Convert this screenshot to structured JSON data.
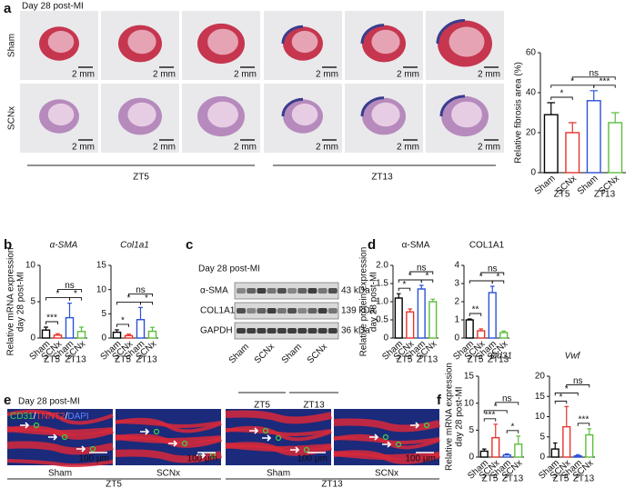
{
  "figure": {
    "panel_labels": [
      "a",
      "b",
      "c",
      "d",
      "e",
      "f"
    ]
  },
  "histology": {
    "timepoint": "Day 28 post-MI",
    "rows": [
      "Sham",
      "SCNx"
    ],
    "scale_bar": "2 mm",
    "groups": [
      "ZT5",
      "ZT13"
    ]
  },
  "western_blot": {
    "timepoint": "Day 28 post-MI",
    "proteins": [
      "α-SMA",
      "COL1A1",
      "GAPDH"
    ],
    "sizes": [
      "43 kDa",
      "139 kDa",
      "36 kDa"
    ],
    "lanes": [
      "Sham",
      "SCNx",
      "Sham",
      "SCNx"
    ],
    "groups": [
      "ZT5",
      "ZT13"
    ]
  },
  "immunofluorescence": {
    "timepoint": "Day 28 post-MI",
    "stains": [
      {
        "text": "CD31",
        "color": "#3fd24a"
      },
      {
        "text": "TNNT2",
        "color": "#ff3a3a"
      },
      {
        "text": "DAPI",
        "color": "#5a86ff"
      }
    ],
    "separator": "/",
    "scale_bar": "100 μm",
    "conditions": [
      "Sham",
      "SCNx",
      "Sham",
      "SCNx"
    ],
    "groups": [
      "ZT5",
      "ZT13"
    ]
  },
  "chart_data": [
    {
      "type": "bar",
      "y_label": "Relative fibrosis area (%)",
      "categories": [
        "Sham",
        "SCNx",
        "Sham",
        "SCNx"
      ],
      "groups": [
        "ZT5",
        "ZT13"
      ],
      "values": [
        29,
        20,
        36,
        25
      ],
      "errors": [
        6,
        5,
        5,
        5
      ],
      "colors": [
        "#000000",
        "#e8312a",
        "#2a52d9",
        "#5bbf3a"
      ],
      "ylim": [
        0,
        60
      ],
      "yticks": [
        0,
        20,
        40,
        60
      ],
      "significance": [
        "*",
        "*",
        "***",
        "ns"
      ]
    },
    {
      "type": "bar",
      "title": "α-SMA",
      "title_italic": true,
      "y_label": [
        "Relative mRNA expression",
        "day 28 post-MI"
      ],
      "categories": [
        "Sham",
        "SCNx",
        "Sham",
        "SCNx"
      ],
      "groups": [
        "ZT5",
        "ZT13"
      ],
      "values": [
        1.1,
        0.4,
        2.8,
        0.9
      ],
      "errors": [
        0.4,
        0.2,
        2,
        0.6
      ],
      "colors": [
        "#000000",
        "#e8312a",
        "#2a52d9",
        "#5bbf3a"
      ],
      "ylim": [
        0,
        10
      ],
      "yticks": [
        0,
        5,
        10
      ],
      "significance": [
        "***",
        "*",
        "*",
        "ns"
      ]
    },
    {
      "type": "bar",
      "title": "Col1a1",
      "title_italic": true,
      "categories": [
        "Sham",
        "SCNx",
        "Sham",
        "SCNx"
      ],
      "groups": [
        "ZT5",
        "ZT13"
      ],
      "values": [
        1.2,
        0.5,
        3.8,
        1.4
      ],
      "errors": [
        0.5,
        0.3,
        2.5,
        0.8
      ],
      "colors": [
        "#000000",
        "#e8312a",
        "#2a52d9",
        "#5bbf3a"
      ],
      "ylim": [
        0,
        15
      ],
      "yticks": [
        0,
        5,
        10,
        15
      ],
      "significance": [
        "*",
        "*",
        "*",
        "ns"
      ]
    },
    {
      "type": "bar",
      "title": "α-SMA",
      "title_italic": false,
      "y_label": [
        "Relative protein expression",
        "day 28 post-MI"
      ],
      "categories": [
        "Sham",
        "SCNx",
        "Sham",
        "SCNx"
      ],
      "groups": [
        "ZT5",
        "ZT13"
      ],
      "values": [
        1.1,
        0.72,
        1.35,
        1.0
      ],
      "errors": [
        0.12,
        0.08,
        0.1,
        0.07
      ],
      "colors": [
        "#000000",
        "#e8312a",
        "#2a52d9",
        "#5bbf3a"
      ],
      "ylim": [
        0,
        2
      ],
      "yticks": [
        0,
        0.5,
        {
          "value": 1,
          "label": "1.0"
        },
        1.5,
        {
          "value": 2,
          "label": "2.0"
        }
      ],
      "significance": [
        "*",
        "*",
        "*",
        "ns"
      ]
    },
    {
      "type": "bar",
      "title": "COL1A1",
      "title_italic": false,
      "categories": [
        "Sham",
        "SCNx",
        "Sham",
        "SCNx"
      ],
      "groups": [
        "ZT5",
        "ZT13"
      ],
      "values": [
        1.0,
        0.4,
        2.5,
        0.3
      ],
      "errors": [
        0.05,
        0.1,
        0.35,
        0.08
      ],
      "colors": [
        "#000000",
        "#e8312a",
        "#2a52d9",
        "#5bbf3a"
      ],
      "ylim": [
        0,
        4
      ],
      "yticks": [
        0,
        1,
        2,
        3,
        4
      ],
      "significance": [
        "**",
        "*",
        "*",
        "ns"
      ]
    },
    {
      "type": "bar",
      "title": "Cd31",
      "title_italic": true,
      "y_label": [
        "Relative mRNA expression",
        "day 28 post-MI"
      ],
      "categories": [
        "Sham",
        "SCNx",
        "Sham",
        "SCNx"
      ],
      "groups": [
        "ZT5",
        "ZT13"
      ],
      "values": [
        1.1,
        3.6,
        0.4,
        2.4
      ],
      "errors": [
        0.4,
        2.5,
        0.2,
        1.5
      ],
      "colors": [
        "#000000",
        "#e8312a",
        "#2a52d9",
        "#5bbf3a"
      ],
      "ylim": [
        0,
        15
      ],
      "yticks": [
        0,
        5,
        10,
        15
      ],
      "significance": [
        "***",
        "*",
        "*",
        "ns"
      ]
    },
    {
      "type": "bar",
      "title": "Vwf",
      "title_italic": true,
      "categories": [
        "Sham",
        "SCNx",
        "Sham",
        "SCNx"
      ],
      "groups": [
        "ZT5",
        "ZT13"
      ],
      "values": [
        2,
        7.5,
        0.3,
        5.5
      ],
      "errors": [
        1.5,
        5,
        0.3,
        1.5
      ],
      "colors": [
        "#000000",
        "#e8312a",
        "#2a52d9",
        "#5bbf3a"
      ],
      "ylim": [
        0,
        20
      ],
      "yticks": [
        0,
        5,
        10,
        15,
        20
      ],
      "significance": [
        "*",
        "*",
        "***",
        "ns"
      ]
    }
  ]
}
